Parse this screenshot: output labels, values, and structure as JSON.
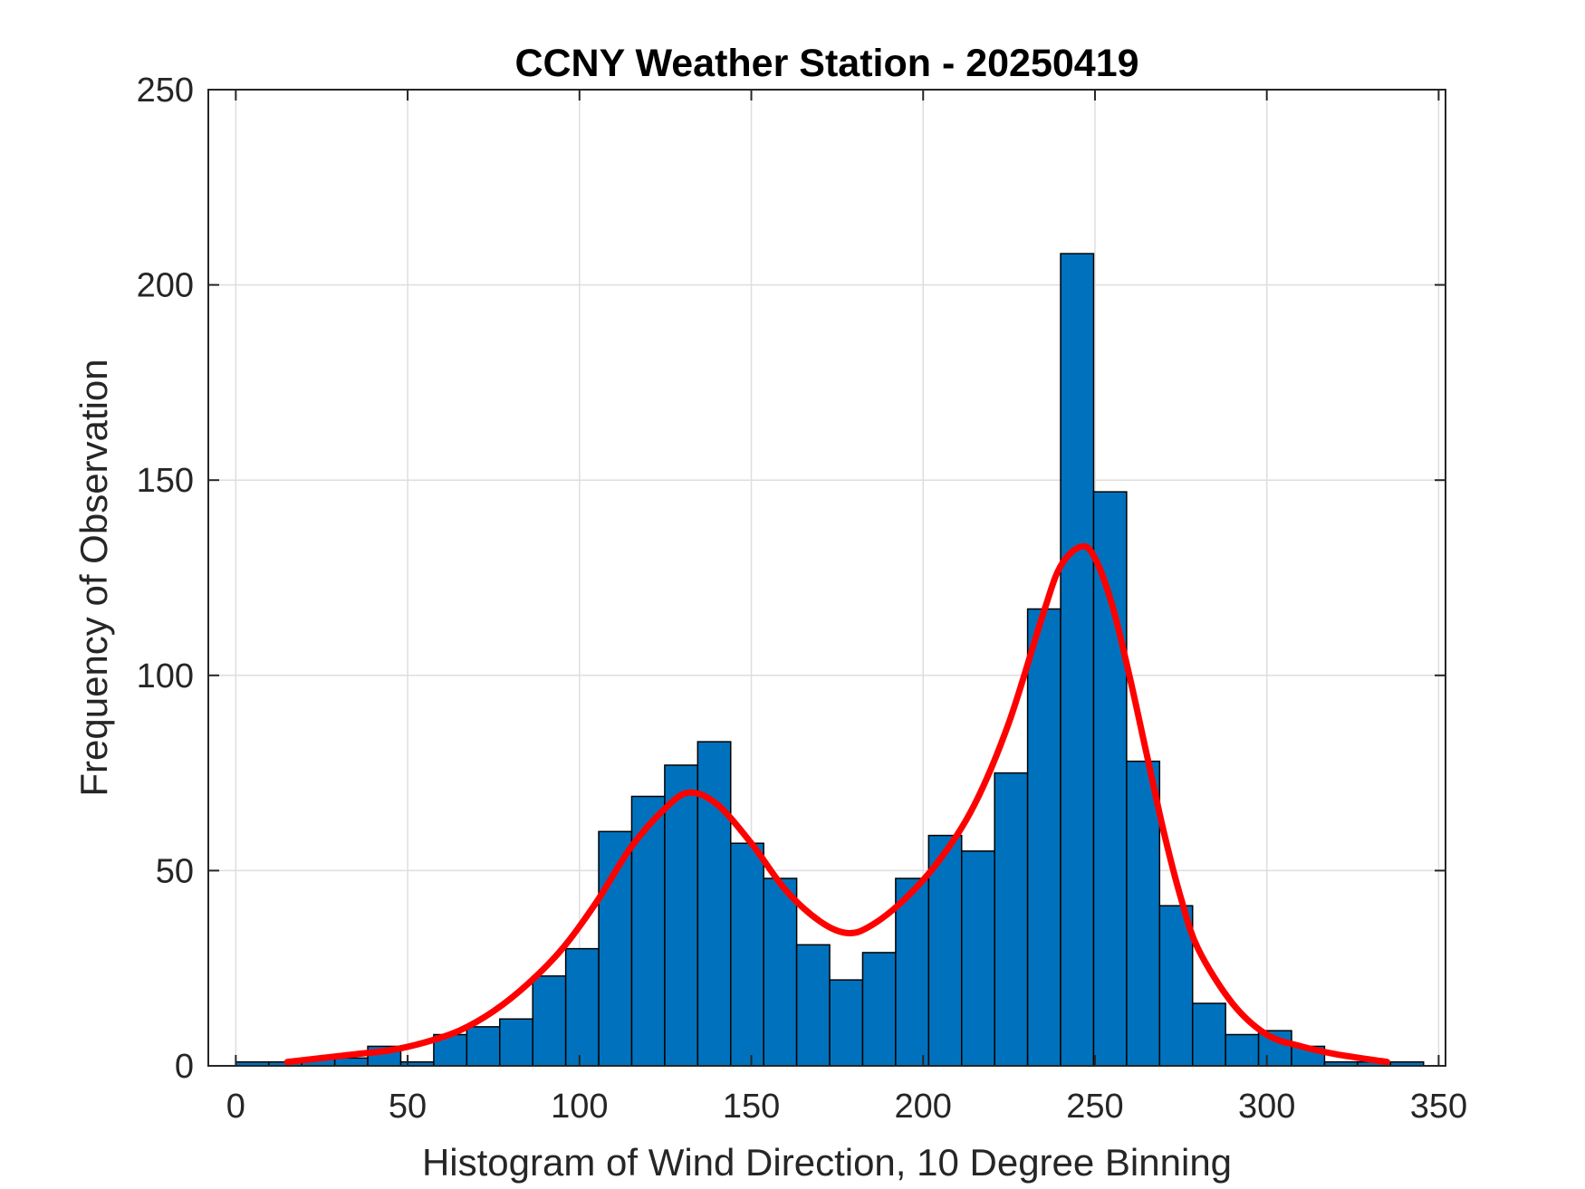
{
  "chart_data": {
    "type": "bar",
    "title": "CCNY Weather Station - 20250419",
    "xlabel": "Histogram of Wind Direction, 10 Degree Binning",
    "ylabel": "Frequency of Observation",
    "xlim": [
      -8,
      352
    ],
    "ylim": [
      0,
      250
    ],
    "xticks": [
      0,
      50,
      100,
      150,
      200,
      250,
      300,
      350
    ],
    "yticks": [
      0,
      50,
      100,
      150,
      200,
      250
    ],
    "grid": true,
    "bin_width": 9.6,
    "bin_edges": [
      0,
      9.6,
      19.2,
      28.8,
      38.4,
      48.0,
      57.6,
      67.2,
      76.8,
      86.4,
      96.0,
      105.6,
      115.2,
      124.8,
      134.4,
      144.0,
      153.6,
      163.2,
      172.8,
      182.4,
      192.0,
      201.6,
      211.2,
      220.8,
      230.4,
      240.0,
      249.6,
      259.2,
      268.8,
      278.4,
      288.0,
      297.6,
      307.2,
      316.8,
      326.4,
      336.0,
      345.6
    ],
    "counts": [
      1,
      1,
      2,
      2,
      5,
      1,
      8,
      10,
      12,
      23,
      30,
      60,
      69,
      77,
      83,
      57,
      48,
      31,
      22,
      29,
      48,
      59,
      55,
      75,
      117,
      208,
      147,
      78,
      41,
      16,
      8,
      9,
      5,
      1,
      1,
      1
    ],
    "bar_color": "#0072BD",
    "fit_curve": {
      "name": "fit",
      "color": "#FF0000",
      "x": [
        15,
        25,
        35,
        45,
        55,
        65,
        75,
        85,
        95,
        105,
        115,
        125,
        132,
        140,
        150,
        160,
        170,
        178,
        185,
        195,
        205,
        215,
        225,
        235,
        240,
        246,
        250,
        255,
        260,
        265,
        270,
        275,
        280,
        290,
        300,
        310,
        320,
        335
      ],
      "y": [
        1,
        2,
        3,
        4,
        6,
        9,
        14,
        21,
        30,
        42,
        56,
        66,
        70,
        67,
        57,
        45,
        37,
        34,
        36,
        43,
        53,
        67,
        88,
        116,
        128,
        133,
        130,
        118,
        100,
        80,
        60,
        43,
        30,
        16,
        8,
        5,
        3,
        1
      ]
    }
  }
}
